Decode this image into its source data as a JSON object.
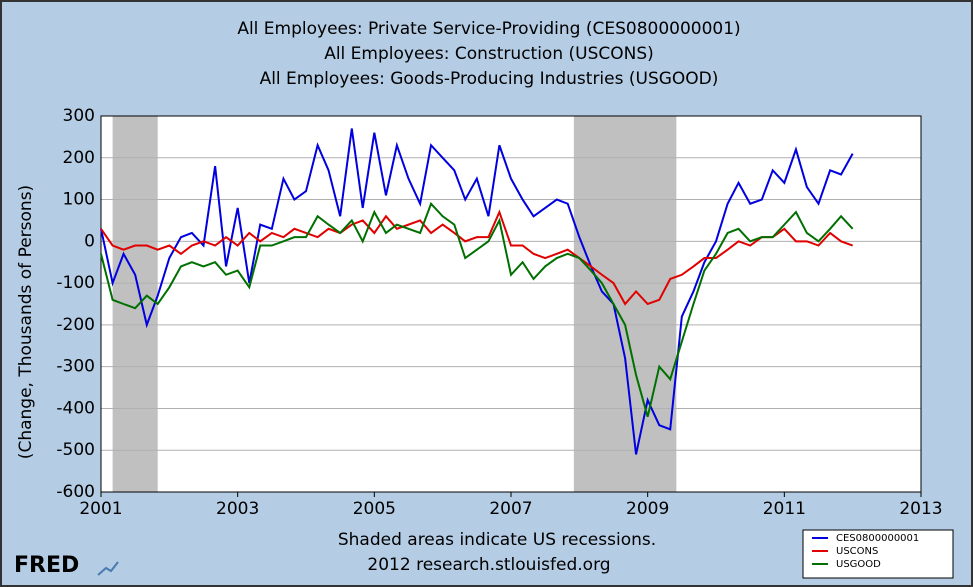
{
  "chart_data": {
    "type": "line",
    "title": [
      "All Employees: Private Service-Providing (CES0800000001)",
      "All Employees: Construction (USCONS)",
      "All Employees: Goods-Producing Industries (USGOOD)"
    ],
    "ylabel": "(Change, Thousands of Persons)",
    "note": "Shaded areas indicate US recessions.",
    "source": "2012 research.stlouisfed.org",
    "logo": "FRED",
    "xlim": [
      2001,
      2013
    ],
    "xticks": [
      2001,
      2003,
      2005,
      2007,
      2009,
      2011,
      2013
    ],
    "ylim": [
      -600,
      300
    ],
    "yticks": [
      300,
      200,
      100,
      0,
      -100,
      -200,
      -300,
      -400,
      -500,
      -600
    ],
    "grid": true,
    "legend": "lower right",
    "recessions": [
      [
        2001.17,
        2001.83
      ],
      [
        2007.92,
        2009.42
      ]
    ],
    "x": [
      2001,
      2001.17,
      2001.33,
      2001.5,
      2001.67,
      2001.83,
      2002,
      2002.17,
      2002.33,
      2002.5,
      2002.67,
      2002.83,
      2003,
      2003.17,
      2003.33,
      2003.5,
      2003.67,
      2003.83,
      2004,
      2004.17,
      2004.33,
      2004.5,
      2004.67,
      2004.83,
      2005,
      2005.17,
      2005.33,
      2005.5,
      2005.67,
      2005.83,
      2006,
      2006.17,
      2006.33,
      2006.5,
      2006.67,
      2006.83,
      2007,
      2007.17,
      2007.33,
      2007.5,
      2007.67,
      2007.83,
      2008,
      2008.17,
      2008.33,
      2008.5,
      2008.67,
      2008.83,
      2009,
      2009.17,
      2009.33,
      2009.5,
      2009.67,
      2009.83,
      2010,
      2010.17,
      2010.33,
      2010.5,
      2010.67,
      2010.83,
      2011,
      2011.17,
      2011.33,
      2011.5,
      2011.67,
      2011.83,
      2012
    ],
    "series": [
      {
        "name": "CES0800000001",
        "color": "#0000e0",
        "values": [
          30,
          -100,
          -30,
          -80,
          -200,
          -130,
          -40,
          10,
          20,
          -10,
          180,
          -60,
          80,
          -100,
          40,
          30,
          150,
          100,
          120,
          230,
          170,
          60,
          270,
          80,
          260,
          110,
          230,
          150,
          90,
          230,
          200,
          170,
          100,
          150,
          60,
          230,
          150,
          100,
          60,
          80,
          100,
          90,
          10,
          -60,
          -120,
          -150,
          -280,
          -510,
          -380,
          -440,
          -450,
          -180,
          -120,
          -50,
          0,
          90,
          140,
          90,
          100,
          170,
          140,
          220,
          130,
          90,
          170,
          160,
          210
        ]
      },
      {
        "name": "USCONS",
        "color": "#e00000",
        "values": [
          30,
          -10,
          -20,
          -10,
          -10,
          -20,
          -10,
          -30,
          -10,
          0,
          -10,
          10,
          -10,
          20,
          0,
          20,
          10,
          30,
          20,
          10,
          30,
          20,
          40,
          50,
          20,
          60,
          30,
          40,
          50,
          20,
          40,
          20,
          0,
          10,
          10,
          70,
          -10,
          -10,
          -30,
          -40,
          -30,
          -20,
          -40,
          -60,
          -80,
          -100,
          -150,
          -120,
          -150,
          -140,
          -90,
          -80,
          -60,
          -40,
          -40,
          -20,
          0,
          -10,
          10,
          10,
          30,
          0,
          0,
          -10,
          20,
          0,
          -10
        ]
      },
      {
        "name": "USGOOD",
        "color": "#007000",
        "values": [
          -30,
          -140,
          -150,
          -160,
          -130,
          -150,
          -110,
          -60,
          -50,
          -60,
          -50,
          -80,
          -70,
          -110,
          -10,
          -10,
          0,
          10,
          10,
          60,
          40,
          20,
          50,
          0,
          70,
          20,
          40,
          30,
          20,
          90,
          60,
          40,
          -40,
          -20,
          0,
          50,
          -80,
          -50,
          -90,
          -60,
          -40,
          -30,
          -40,
          -70,
          -100,
          -150,
          -200,
          -320,
          -420,
          -300,
          -330,
          -240,
          -150,
          -70,
          -30,
          20,
          30,
          0,
          10,
          10,
          40,
          70,
          20,
          0,
          30,
          60,
          30
        ]
      }
    ]
  }
}
